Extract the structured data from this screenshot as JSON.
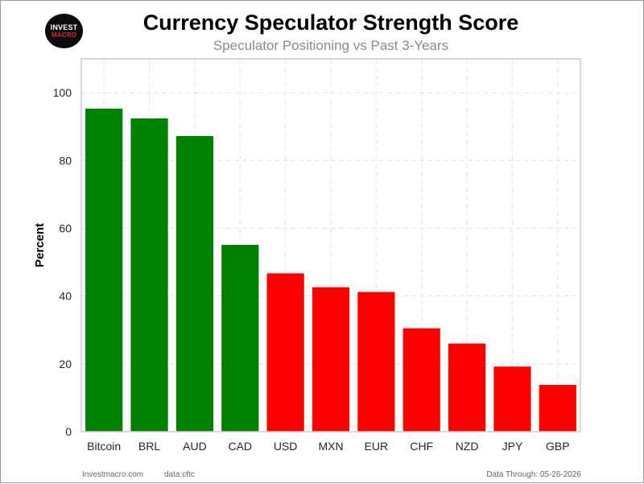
{
  "logo": {
    "line1": "INVEST",
    "line2": "MACRO"
  },
  "footer": {
    "site": "Investmacro.com",
    "source": "data:cftc",
    "date": "Data Through: 05-26-2026"
  },
  "colors": {
    "positive": "#008000",
    "negative": "#ff0000",
    "grid": "#e1e1e1",
    "axis": "#cccccc"
  },
  "chart_data": {
    "type": "bar",
    "title": "Currency Speculator Strength Score",
    "subtitle": "Speculator Positioning vs Past 3-Years",
    "xlabel": "",
    "ylabel": "Percent",
    "ylim": [
      0,
      110
    ],
    "yticks": [
      0,
      20,
      40,
      60,
      80,
      100
    ],
    "grid": true,
    "categories": [
      "Bitcoin",
      "BRL",
      "AUD",
      "CAD",
      "USD",
      "MXN",
      "EUR",
      "CHF",
      "NZD",
      "JPY",
      "GBP"
    ],
    "values": [
      95.3,
      92.4,
      87.2,
      55.1,
      46.7,
      42.6,
      41.2,
      30.5,
      26.0,
      19.2,
      13.8
    ],
    "bar_colors": [
      "#008000",
      "#008000",
      "#008000",
      "#008000",
      "#ff0000",
      "#ff0000",
      "#ff0000",
      "#ff0000",
      "#ff0000",
      "#ff0000",
      "#ff0000"
    ]
  }
}
